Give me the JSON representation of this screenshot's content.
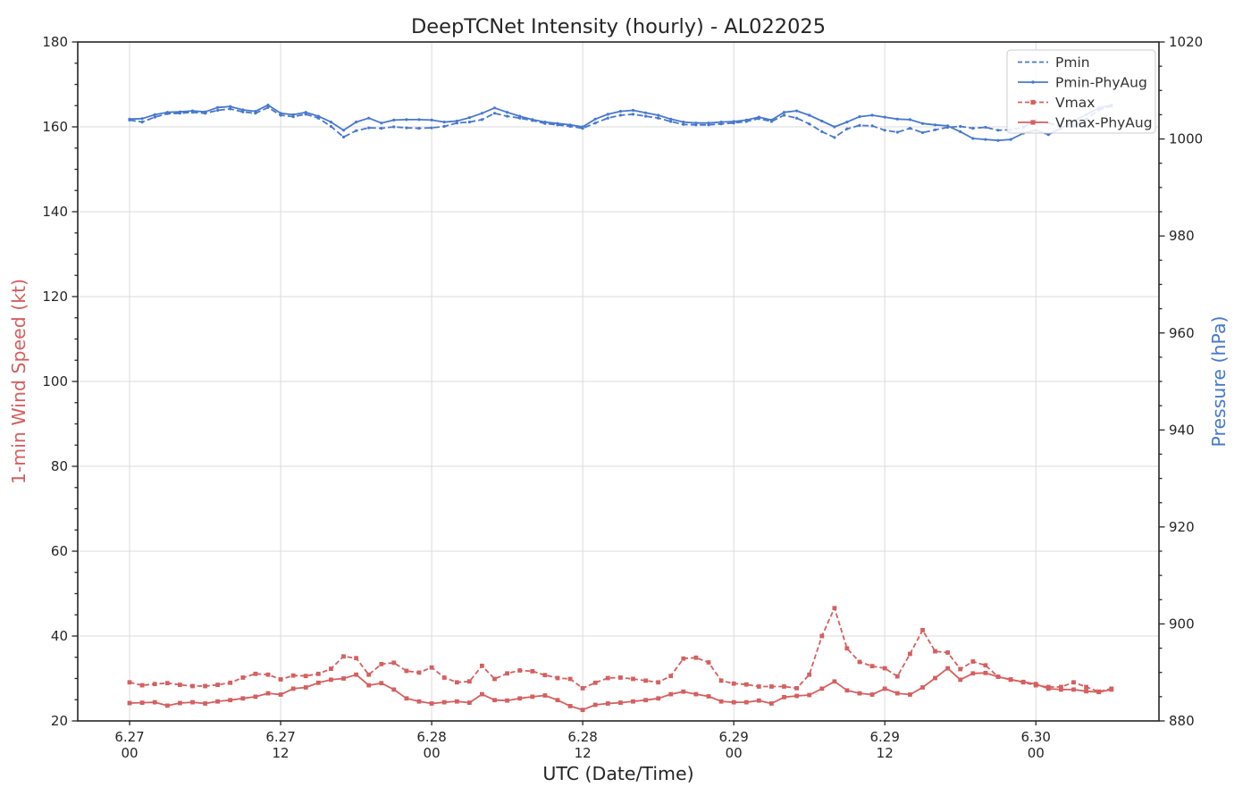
{
  "title": "DeepTCNet Intensity (hourly) - AL022025",
  "colors": {
    "blue": "#4878CF",
    "red": "#D65F5F",
    "grid": "#DBDBDB",
    "spine": "#262626",
    "tick_label": "#262626",
    "legend_border": "#CCCCCC"
  },
  "chart_data": {
    "type": "line",
    "title": "DeepTCNet Intensity (hourly) - AL022025",
    "xlabel": "UTC (Date/Time)",
    "ylabel_left": "1-min Wind Speed (kt)",
    "ylabel_right": "Pressure (hPa)",
    "x_unit": "hours since 6.27 00 UTC, hourly samples",
    "x_range": [
      -4.12,
      81.78
    ],
    "x_ticks": [
      {
        "hour": 0,
        "label1": "6.27",
        "label2": "00"
      },
      {
        "hour": 12,
        "label1": "6.27",
        "label2": "12"
      },
      {
        "hour": 24,
        "label1": "6.28",
        "label2": "00"
      },
      {
        "hour": 36,
        "label1": "6.28",
        "label2": "12"
      },
      {
        "hour": 48,
        "label1": "6.29",
        "label2": "00"
      },
      {
        "hour": 60,
        "label1": "6.29",
        "label2": "12"
      },
      {
        "hour": 72,
        "label1": "6.30",
        "label2": "00"
      }
    ],
    "ylim_left": [
      20,
      180
    ],
    "yticks_left": [
      20,
      40,
      60,
      80,
      100,
      120,
      140,
      160,
      180
    ],
    "y_minor_step_left": 5,
    "ylim_right": [
      880,
      1020
    ],
    "yticks_right": [
      880,
      900,
      920,
      940,
      960,
      980,
      1000,
      1020
    ],
    "y_minor_step_right": 5,
    "grid": true,
    "legend_position": "top-right",
    "series": [
      {
        "name": "Pmin",
        "axis": "right",
        "color": "#4878CF",
        "style": "dashed",
        "marker": "dot",
        "values": [
          1003.9,
          1003.5,
          1004.5,
          1005.2,
          1005.3,
          1005.5,
          1005.3,
          1005.9,
          1006.2,
          1005.6,
          1005.3,
          1006.5,
          1004.9,
          1004.6,
          1005.1,
          1004.3,
          1002.6,
          1000.4,
          1001.7,
          1002.3,
          1002.2,
          1002.5,
          1002.3,
          1002.2,
          1002.3,
          1002.6,
          1003.3,
          1003.5,
          1004.0,
          1005.3,
          1004.7,
          1004.3,
          1003.8,
          1003.2,
          1002.9,
          1002.6,
          1002.2,
          1003.3,
          1004.3,
          1004.9,
          1005.1,
          1004.7,
          1004.3,
          1003.6,
          1003.0,
          1002.9,
          1002.9,
          1003.1,
          1003.3,
          1003.6,
          1004.2,
          1003.6,
          1004.9,
          1004.3,
          1003.1,
          1001.5,
          1000.3,
          1002.1,
          1002.8,
          1002.7,
          1001.8,
          1001.4,
          1002.2,
          1001.3,
          1001.9,
          1002.4,
          1002.6,
          1002.2,
          1002.4,
          1001.8,
          1001.9,
          1002.4,
          1003.8,
          1003.3,
          1002.6,
          1002.6,
          1004.1,
          1006.0,
          1006.8
        ]
      },
      {
        "name": "Pmin-PhyAug",
        "axis": "right",
        "color": "#4878CF",
        "style": "solid",
        "marker": "dot",
        "values": [
          1004.1,
          1004.2,
          1005.0,
          1005.5,
          1005.6,
          1005.8,
          1005.6,
          1006.5,
          1006.7,
          1006.0,
          1005.7,
          1007.0,
          1005.3,
          1005.0,
          1005.5,
          1004.7,
          1003.5,
          1001.8,
          1003.5,
          1004.3,
          1003.3,
          1003.9,
          1004.0,
          1004.0,
          1003.9,
          1003.5,
          1003.7,
          1004.4,
          1005.3,
          1006.4,
          1005.5,
          1004.7,
          1004.0,
          1003.5,
          1003.2,
          1002.9,
          1002.5,
          1004.1,
          1005.1,
          1005.7,
          1005.9,
          1005.4,
          1004.9,
          1004.1,
          1003.5,
          1003.3,
          1003.3,
          1003.5,
          1003.6,
          1003.9,
          1004.5,
          1003.9,
          1005.5,
          1005.8,
          1004.9,
          1003.7,
          1002.5,
          1003.5,
          1004.6,
          1004.9,
          1004.5,
          1004.1,
          1004.0,
          1003.2,
          1002.9,
          1002.7,
          1001.5,
          1000.1,
          999.9,
          999.7,
          999.9,
          1001.2,
          1001.8,
          1000.9,
          1002.2,
          1003.7,
          1005.0,
          1006.4,
          1007.0
        ]
      },
      {
        "name": "Vmax",
        "axis": "left",
        "color": "#D65F5F",
        "style": "dashed",
        "marker": "square",
        "values": [
          29.1,
          28.4,
          28.7,
          28.9,
          28.5,
          28.2,
          28.2,
          28.5,
          29.0,
          30.2,
          31.1,
          30.9,
          29.8,
          30.7,
          30.6,
          31.1,
          32.3,
          35.2,
          34.8,
          30.9,
          33.4,
          33.7,
          31.8,
          31.4,
          32.6,
          30.2,
          29.1,
          29.3,
          33.0,
          29.9,
          31.2,
          31.9,
          31.7,
          30.8,
          30.1,
          29.9,
          27.7,
          29.0,
          30.1,
          30.2,
          29.9,
          29.5,
          29.1,
          30.6,
          34.7,
          34.9,
          33.8,
          29.5,
          28.8,
          28.6,
          28.1,
          28.1,
          28.1,
          27.7,
          30.9,
          40.0,
          46.6,
          37.1,
          33.9,
          32.9,
          32.4,
          30.5,
          35.8,
          41.4,
          36.4,
          36.1,
          32.2,
          34.0,
          33.1,
          30.4,
          29.8,
          29.1,
          28.4,
          28.0,
          28.0,
          29.1,
          28.0,
          26.9,
          27.6
        ]
      },
      {
        "name": "Vmax-PhyAug",
        "axis": "left",
        "color": "#D65F5F",
        "style": "solid",
        "marker": "square",
        "values": [
          24.2,
          24.3,
          24.4,
          23.6,
          24.2,
          24.4,
          24.1,
          24.6,
          24.9,
          25.3,
          25.7,
          26.5,
          26.2,
          27.6,
          27.9,
          29.0,
          29.7,
          30.0,
          30.9,
          28.4,
          28.9,
          27.4,
          25.3,
          24.6,
          24.1,
          24.4,
          24.6,
          24.3,
          26.3,
          24.9,
          24.8,
          25.3,
          25.7,
          26.0,
          24.9,
          23.5,
          22.6,
          23.8,
          24.1,
          24.3,
          24.6,
          24.9,
          25.3,
          26.3,
          26.9,
          26.3,
          25.8,
          24.6,
          24.4,
          24.4,
          24.8,
          24.1,
          25.6,
          25.9,
          26.1,
          27.6,
          29.3,
          27.2,
          26.5,
          26.2,
          27.6,
          26.5,
          26.2,
          27.9,
          30.1,
          32.4,
          29.7,
          31.2,
          31.3,
          30.4,
          29.7,
          29.2,
          28.7,
          27.6,
          27.4,
          27.4,
          27.0,
          26.8,
          27.4
        ]
      }
    ],
    "legend_labels": [
      "Pmin",
      "Pmin-PhyAug",
      "Vmax",
      "Vmax-PhyAug"
    ]
  }
}
